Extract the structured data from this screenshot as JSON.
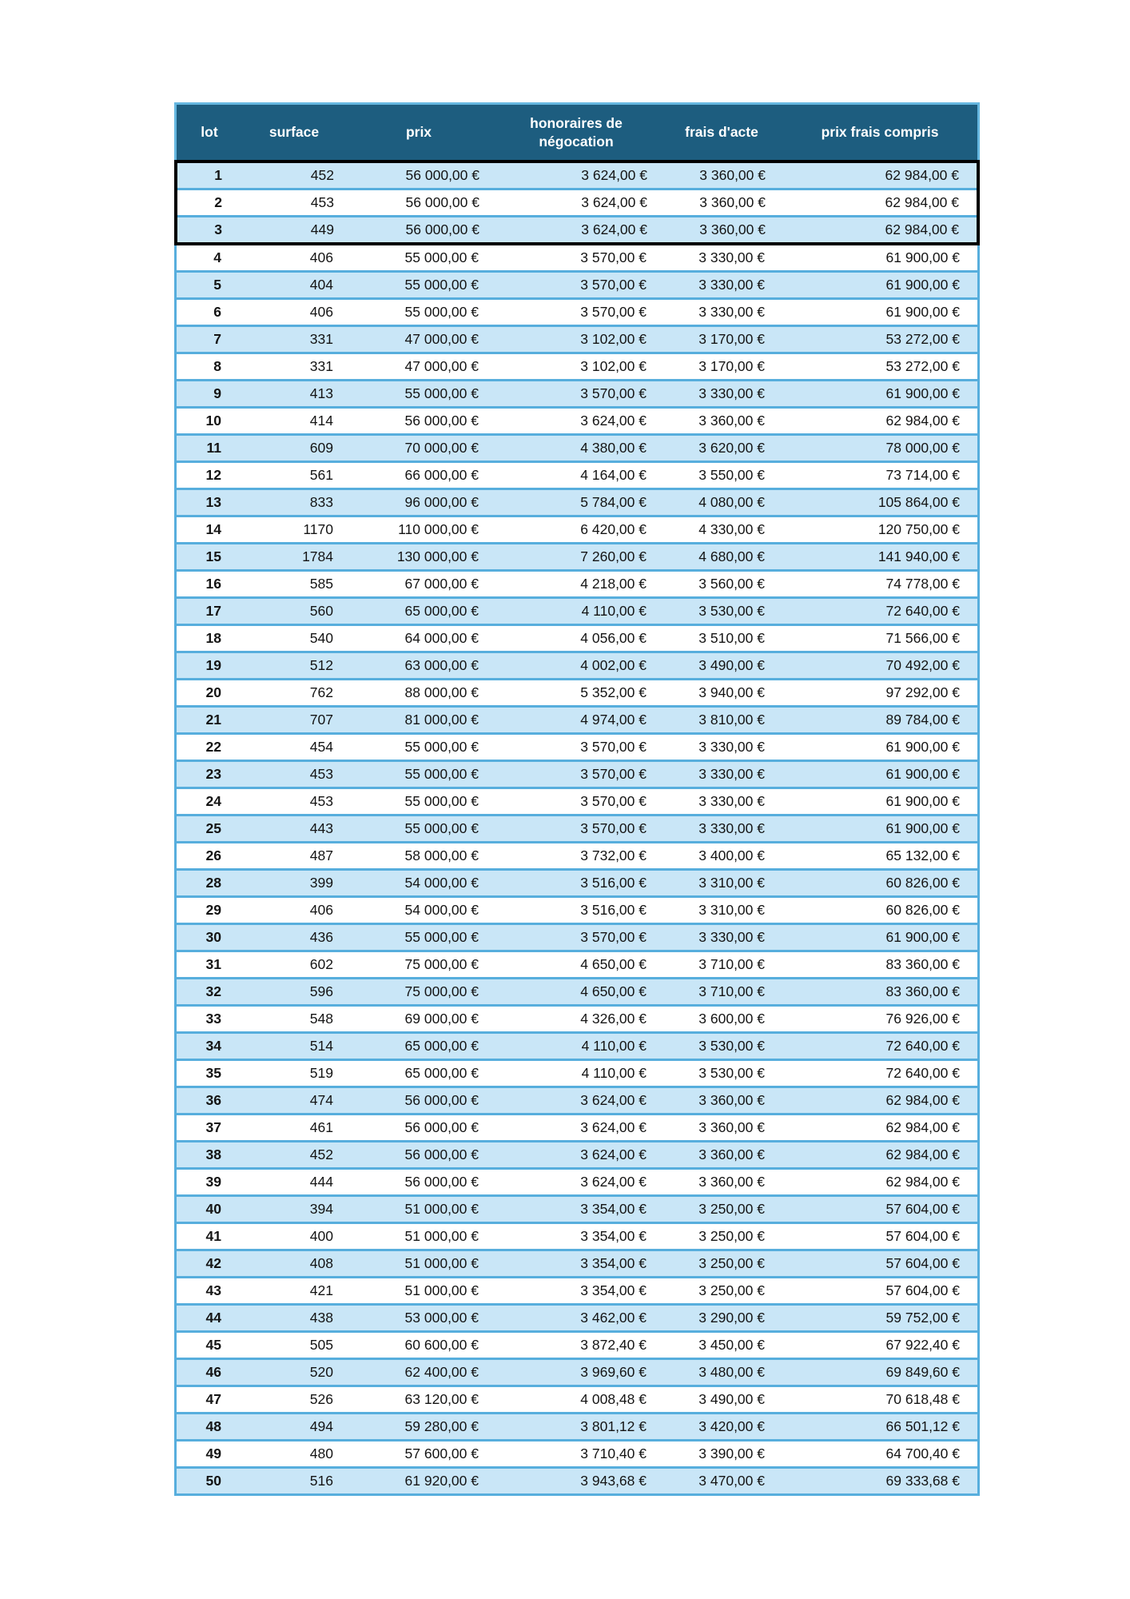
{
  "colors": {
    "header_bg": "#1d5d7f",
    "header_text": "#ffffff",
    "row_alt_blue": "#c9e6f7",
    "grid_blue": "#57aedd",
    "group_frame_black": "#000000"
  },
  "table": {
    "columns": [
      "lot",
      "surface",
      "prix",
      "honoraires de négocation",
      "frais d'acte",
      "prix frais compris"
    ],
    "group_rows": [
      {
        "lot": "1",
        "surface": "452",
        "prix": "56 000,00 €",
        "honoraires": "3 624,00 €",
        "frais_acte": "3 360,00 €",
        "prix_frais_compris": "62 984,00 €"
      },
      {
        "lot": "2",
        "surface": "453",
        "prix": "56 000,00 €",
        "honoraires": "3 624,00 €",
        "frais_acte": "3 360,00 €",
        "prix_frais_compris": "62 984,00 €"
      },
      {
        "lot": "3",
        "surface": "449",
        "prix": "56 000,00 €",
        "honoraires": "3 624,00 €",
        "frais_acte": "3 360,00 €",
        "prix_frais_compris": "62 984,00 €"
      }
    ],
    "rows": [
      {
        "lot": "4",
        "surface": "406",
        "prix": "55 000,00 €",
        "honoraires": "3 570,00 €",
        "frais_acte": "3 330,00 €",
        "prix_frais_compris": "61 900,00 €"
      },
      {
        "lot": "5",
        "surface": "404",
        "prix": "55 000,00 €",
        "honoraires": "3 570,00 €",
        "frais_acte": "3 330,00 €",
        "prix_frais_compris": "61 900,00 €"
      },
      {
        "lot": "6",
        "surface": "406",
        "prix": "55 000,00 €",
        "honoraires": "3 570,00 €",
        "frais_acte": "3 330,00 €",
        "prix_frais_compris": "61 900,00 €"
      },
      {
        "lot": "7",
        "surface": "331",
        "prix": "47 000,00 €",
        "honoraires": "3 102,00 €",
        "frais_acte": "3 170,00 €",
        "prix_frais_compris": "53 272,00 €"
      },
      {
        "lot": "8",
        "surface": "331",
        "prix": "47 000,00 €",
        "honoraires": "3 102,00 €",
        "frais_acte": "3 170,00 €",
        "prix_frais_compris": "53 272,00 €"
      },
      {
        "lot": "9",
        "surface": "413",
        "prix": "55 000,00 €",
        "honoraires": "3 570,00 €",
        "frais_acte": "3 330,00 €",
        "prix_frais_compris": "61 900,00 €"
      },
      {
        "lot": "10",
        "surface": "414",
        "prix": "56 000,00 €",
        "honoraires": "3 624,00 €",
        "frais_acte": "3 360,00 €",
        "prix_frais_compris": "62 984,00 €"
      },
      {
        "lot": "11",
        "surface": "609",
        "prix": "70 000,00 €",
        "honoraires": "4 380,00 €",
        "frais_acte": "3 620,00 €",
        "prix_frais_compris": "78 000,00 €"
      },
      {
        "lot": "12",
        "surface": "561",
        "prix": "66 000,00 €",
        "honoraires": "4 164,00 €",
        "frais_acte": "3 550,00 €",
        "prix_frais_compris": "73 714,00 €"
      },
      {
        "lot": "13",
        "surface": "833",
        "prix": "96 000,00 €",
        "honoraires": "5 784,00 €",
        "frais_acte": "4 080,00 €",
        "prix_frais_compris": "105 864,00 €"
      },
      {
        "lot": "14",
        "surface": "1170",
        "prix": "110 000,00 €",
        "honoraires": "6 420,00 €",
        "frais_acte": "4 330,00 €",
        "prix_frais_compris": "120 750,00 €"
      },
      {
        "lot": "15",
        "surface": "1784",
        "prix": "130 000,00 €",
        "honoraires": "7 260,00 €",
        "frais_acte": "4 680,00 €",
        "prix_frais_compris": "141 940,00 €"
      },
      {
        "lot": "16",
        "surface": "585",
        "prix": "67 000,00 €",
        "honoraires": "4 218,00 €",
        "frais_acte": "3 560,00 €",
        "prix_frais_compris": "74 778,00 €"
      },
      {
        "lot": "17",
        "surface": "560",
        "prix": "65 000,00 €",
        "honoraires": "4 110,00 €",
        "frais_acte": "3 530,00 €",
        "prix_frais_compris": "72 640,00 €"
      },
      {
        "lot": "18",
        "surface": "540",
        "prix": "64 000,00 €",
        "honoraires": "4 056,00 €",
        "frais_acte": "3 510,00 €",
        "prix_frais_compris": "71 566,00 €"
      },
      {
        "lot": "19",
        "surface": "512",
        "prix": "63 000,00 €",
        "honoraires": "4 002,00 €",
        "frais_acte": "3 490,00 €",
        "prix_frais_compris": "70 492,00 €"
      },
      {
        "lot": "20",
        "surface": "762",
        "prix": "88 000,00 €",
        "honoraires": "5 352,00 €",
        "frais_acte": "3 940,00 €",
        "prix_frais_compris": "97 292,00 €"
      },
      {
        "lot": "21",
        "surface": "707",
        "prix": "81 000,00 €",
        "honoraires": "4 974,00 €",
        "frais_acte": "3 810,00 €",
        "prix_frais_compris": "89 784,00 €"
      },
      {
        "lot": "22",
        "surface": "454",
        "prix": "55 000,00 €",
        "honoraires": "3 570,00 €",
        "frais_acte": "3 330,00 €",
        "prix_frais_compris": "61 900,00 €"
      },
      {
        "lot": "23",
        "surface": "453",
        "prix": "55 000,00 €",
        "honoraires": "3 570,00 €",
        "frais_acte": "3 330,00 €",
        "prix_frais_compris": "61 900,00 €"
      },
      {
        "lot": "24",
        "surface": "453",
        "prix": "55 000,00 €",
        "honoraires": "3 570,00 €",
        "frais_acte": "3 330,00 €",
        "prix_frais_compris": "61 900,00 €"
      },
      {
        "lot": "25",
        "surface": "443",
        "prix": "55 000,00 €",
        "honoraires": "3 570,00 €",
        "frais_acte": "3 330,00 €",
        "prix_frais_compris": "61 900,00 €"
      },
      {
        "lot": "26",
        "surface": "487",
        "prix": "58 000,00 €",
        "honoraires": "3 732,00 €",
        "frais_acte": "3 400,00 €",
        "prix_frais_compris": "65 132,00 €"
      },
      {
        "lot": "28",
        "surface": "399",
        "prix": "54 000,00 €",
        "honoraires": "3 516,00 €",
        "frais_acte": "3 310,00 €",
        "prix_frais_compris": "60 826,00 €"
      },
      {
        "lot": "29",
        "surface": "406",
        "prix": "54 000,00 €",
        "honoraires": "3 516,00 €",
        "frais_acte": "3 310,00 €",
        "prix_frais_compris": "60 826,00 €"
      },
      {
        "lot": "30",
        "surface": "436",
        "prix": "55 000,00 €",
        "honoraires": "3 570,00 €",
        "frais_acte": "3 330,00 €",
        "prix_frais_compris": "61 900,00 €"
      },
      {
        "lot": "31",
        "surface": "602",
        "prix": "75 000,00 €",
        "honoraires": "4 650,00 €",
        "frais_acte": "3 710,00 €",
        "prix_frais_compris": "83 360,00 €"
      },
      {
        "lot": "32",
        "surface": "596",
        "prix": "75 000,00 €",
        "honoraires": "4 650,00 €",
        "frais_acte": "3 710,00 €",
        "prix_frais_compris": "83 360,00 €"
      },
      {
        "lot": "33",
        "surface": "548",
        "prix": "69 000,00 €",
        "honoraires": "4 326,00 €",
        "frais_acte": "3 600,00 €",
        "prix_frais_compris": "76 926,00 €"
      },
      {
        "lot": "34",
        "surface": "514",
        "prix": "65 000,00 €",
        "honoraires": "4 110,00 €",
        "frais_acte": "3 530,00 €",
        "prix_frais_compris": "72 640,00 €"
      },
      {
        "lot": "35",
        "surface": "519",
        "prix": "65 000,00 €",
        "honoraires": "4 110,00 €",
        "frais_acte": "3 530,00 €",
        "prix_frais_compris": "72 640,00 €"
      },
      {
        "lot": "36",
        "surface": "474",
        "prix": "56 000,00 €",
        "honoraires": "3 624,00 €",
        "frais_acte": "3 360,00 €",
        "prix_frais_compris": "62 984,00 €"
      },
      {
        "lot": "37",
        "surface": "461",
        "prix": "56 000,00 €",
        "honoraires": "3 624,00 €",
        "frais_acte": "3 360,00 €",
        "prix_frais_compris": "62 984,00 €"
      },
      {
        "lot": "38",
        "surface": "452",
        "prix": "56 000,00 €",
        "honoraires": "3 624,00 €",
        "frais_acte": "3 360,00 €",
        "prix_frais_compris": "62 984,00 €"
      },
      {
        "lot": "39",
        "surface": "444",
        "prix": "56 000,00 €",
        "honoraires": "3 624,00 €",
        "frais_acte": "3 360,00 €",
        "prix_frais_compris": "62 984,00 €"
      },
      {
        "lot": "40",
        "surface": "394",
        "prix": "51 000,00 €",
        "honoraires": "3 354,00 €",
        "frais_acte": "3 250,00 €",
        "prix_frais_compris": "57 604,00 €"
      },
      {
        "lot": "41",
        "surface": "400",
        "prix": "51 000,00 €",
        "honoraires": "3 354,00 €",
        "frais_acte": "3 250,00 €",
        "prix_frais_compris": "57 604,00 €"
      },
      {
        "lot": "42",
        "surface": "408",
        "prix": "51 000,00 €",
        "honoraires": "3 354,00 €",
        "frais_acte": "3 250,00 €",
        "prix_frais_compris": "57 604,00 €"
      },
      {
        "lot": "43",
        "surface": "421",
        "prix": "51 000,00 €",
        "honoraires": "3 354,00 €",
        "frais_acte": "3 250,00 €",
        "prix_frais_compris": "57 604,00 €"
      },
      {
        "lot": "44",
        "surface": "438",
        "prix": "53 000,00 €",
        "honoraires": "3 462,00 €",
        "frais_acte": "3 290,00 €",
        "prix_frais_compris": "59 752,00 €"
      },
      {
        "lot": "45",
        "surface": "505",
        "prix": "60 600,00 €",
        "honoraires": "3 872,40 €",
        "frais_acte": "3 450,00 €",
        "prix_frais_compris": "67 922,40 €"
      },
      {
        "lot": "46",
        "surface": "520",
        "prix": "62 400,00 €",
        "honoraires": "3 969,60 €",
        "frais_acte": "3 480,00 €",
        "prix_frais_compris": "69 849,60 €"
      },
      {
        "lot": "47",
        "surface": "526",
        "prix": "63 120,00 €",
        "honoraires": "4 008,48 €",
        "frais_acte": "3 490,00 €",
        "prix_frais_compris": "70 618,48 €"
      },
      {
        "lot": "48",
        "surface": "494",
        "prix": "59 280,00 €",
        "honoraires": "3 801,12 €",
        "frais_acte": "3 420,00 €",
        "prix_frais_compris": "66 501,12 €"
      },
      {
        "lot": "49",
        "surface": "480",
        "prix": "57 600,00 €",
        "honoraires": "3 710,40 €",
        "frais_acte": "3 390,00 €",
        "prix_frais_compris": "64 700,40 €"
      },
      {
        "lot": "50",
        "surface": "516",
        "prix": "61 920,00 €",
        "honoraires": "3 943,68 €",
        "frais_acte": "3 470,00 €",
        "prix_frais_compris": "69 333,68 €"
      }
    ]
  }
}
